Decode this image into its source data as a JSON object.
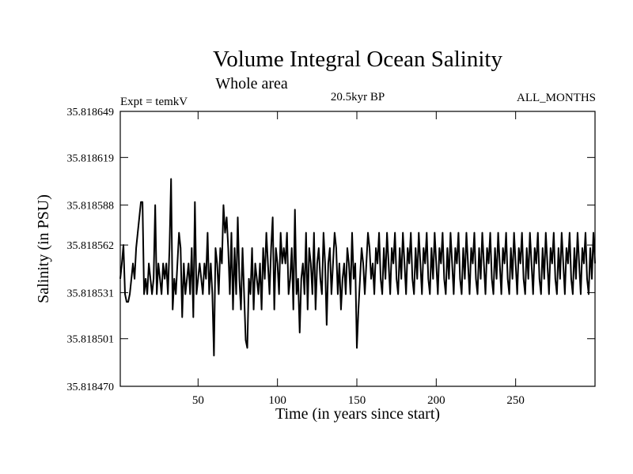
{
  "chart_data": {
    "type": "line",
    "title": "Volume Integral Ocean Salinity",
    "subtitle": "Whole area",
    "annotations": {
      "left": "Expt = temkV",
      "center": "20.5kyr BP",
      "right": "ALL_MONTHS"
    },
    "xlabel": "Time (in years since start)",
    "ylabel": "Salinity (in PSU)",
    "xlim": [
      1,
      300
    ],
    "ylim": [
      35.81847,
      35.818649
    ],
    "x_ticks": [
      50,
      100,
      150,
      200,
      250
    ],
    "y_ticks": [
      35.81847,
      35.818501,
      35.818531,
      35.818562,
      35.818588,
      35.818619,
      35.818649
    ],
    "y_tick_labels": [
      "35.818470",
      "35.818501",
      "35.818531",
      "35.818562",
      "35.818588",
      "35.818619",
      "35.818649"
    ],
    "series": [
      {
        "name": "Volume Integral Ocean Salinity",
        "x_start": 1,
        "x_step": 1,
        "values": [
          35.81854,
          35.81855,
          35.818562,
          35.81853,
          35.818525,
          35.818525,
          35.81853,
          35.81854,
          35.81855,
          35.81854,
          35.81856,
          35.81857,
          35.81858,
          35.81859,
          35.81859,
          35.81853,
          35.81854,
          35.81853,
          35.81855,
          35.81854,
          35.81853,
          35.81854,
          35.818588,
          35.81853,
          35.81855,
          35.81854,
          35.81853,
          35.81855,
          35.81854,
          35.81855,
          35.81853,
          35.81856,
          35.818605,
          35.81852,
          35.81854,
          35.81853,
          35.81855,
          35.81857,
          35.81856,
          35.818515,
          35.81855,
          35.81853,
          35.81854,
          35.81855,
          35.81853,
          35.81856,
          35.818515,
          35.81859,
          35.81853,
          35.81854,
          35.81855,
          35.81854,
          35.81853,
          35.81855,
          35.81854,
          35.81857,
          35.81853,
          35.81855,
          35.81853,
          35.81849,
          35.81856,
          35.81855,
          35.81853,
          35.81856,
          35.81855,
          35.818588,
          35.81857,
          35.81858,
          35.81856,
          35.81853,
          35.81857,
          35.81852,
          35.81856,
          35.81853,
          35.81858,
          35.81854,
          35.81852,
          35.81856,
          35.81853,
          35.8185,
          35.818495,
          35.81854,
          35.81853,
          35.81856,
          35.81852,
          35.81855,
          35.81854,
          35.81853,
          35.81855,
          35.81852,
          35.81856,
          35.81854,
          35.81857,
          35.81855,
          35.81853,
          35.81856,
          35.81858,
          35.81852,
          35.81856,
          35.81855,
          35.81853,
          35.81857,
          35.81855,
          35.81856,
          35.81855,
          35.81857,
          35.81853,
          35.81854,
          35.81856,
          35.81852,
          35.818585,
          35.81853,
          35.81854,
          35.818505,
          35.81854,
          35.81855,
          35.81853,
          35.81857,
          35.81852,
          35.81856,
          35.81855,
          35.81853,
          35.81857,
          35.81852,
          35.81855,
          35.81856,
          35.81854,
          35.81853,
          35.81857,
          35.81855,
          35.81851,
          35.81855,
          35.81856,
          35.81853,
          35.81855,
          35.81857,
          35.81856,
          35.81853,
          35.81855,
          35.81852,
          35.81854,
          35.81855,
          35.81853,
          35.81856,
          35.81855,
          35.81853,
          35.81857,
          35.81854,
          35.81855,
          35.818495,
          35.81852,
          35.81854,
          35.81856,
          35.81855,
          35.81853,
          35.81855,
          35.81857,
          35.81856,
          35.81854,
          35.81855,
          35.81853,
          35.81856,
          35.81855,
          35.81857,
          35.81854,
          35.81853,
          35.81856,
          35.81854,
          35.81857,
          35.81855,
          35.81853,
          35.81856,
          35.81855,
          35.81857,
          35.81854,
          35.81853,
          35.81856,
          35.81854,
          35.81857,
          35.81855,
          35.81853,
          35.81856,
          35.81855,
          35.81857,
          35.81854,
          35.81853,
          35.81856,
          35.81854,
          35.81857,
          35.81855,
          35.81853,
          35.81856,
          35.81855,
          35.81857,
          35.81854,
          35.81853,
          35.81856,
          35.81854,
          35.81857,
          35.81855,
          35.81853,
          35.81856,
          35.81855,
          35.81857,
          35.81854,
          35.81853,
          35.81856,
          35.81854,
          35.81857,
          35.81855,
          35.81853,
          35.81856,
          35.81855,
          35.81857,
          35.81854,
          35.81853,
          35.81856,
          35.81854,
          35.81857,
          35.81855,
          35.81853,
          35.81856,
          35.81855,
          35.81857,
          35.81854,
          35.81853,
          35.81856,
          35.81854,
          35.81857,
          35.81855,
          35.81853,
          35.81856,
          35.81855,
          35.81857,
          35.81854,
          35.81853,
          35.81856,
          35.81854,
          35.81857,
          35.81855,
          35.81853,
          35.81856,
          35.81855,
          35.81857,
          35.81854,
          35.81853,
          35.81856,
          35.81854,
          35.81857,
          35.81855,
          35.81853,
          35.81856,
          35.81855,
          35.81857,
          35.81854,
          35.81853,
          35.81856,
          35.81854,
          35.81857,
          35.81855,
          35.81853,
          35.81856,
          35.81855,
          35.81857,
          35.81854,
          35.81853,
          35.81856,
          35.81854,
          35.81857,
          35.81855,
          35.81853,
          35.81856,
          35.81855,
          35.81857,
          35.81854,
          35.81853,
          35.81856,
          35.81854,
          35.81857,
          35.81855,
          35.81853,
          35.81856,
          35.81855,
          35.81857,
          35.81854,
          35.81853,
          35.81856,
          35.81854,
          35.81857,
          35.81855,
          35.81853,
          35.81856,
          35.81855,
          35.81857,
          35.81854,
          35.81853,
          35.81856,
          35.81854,
          35.81857,
          35.81855,
          35.81853,
          35.81856,
          35.81855
        ]
      }
    ]
  }
}
